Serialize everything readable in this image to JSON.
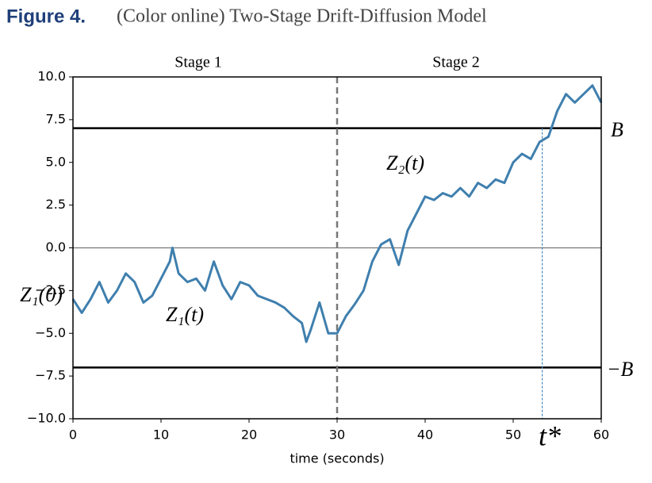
{
  "figure_label": "Figure 4.",
  "caption": "(Color online) Two-Stage Drift-Diffusion Model",
  "chart_data": {
    "type": "line",
    "xlabel": "time (seconds)",
    "x": [
      0,
      1,
      2,
      3,
      4,
      5,
      6,
      7,
      8,
      9,
      10,
      11,
      11.3,
      12,
      13,
      14,
      15,
      16,
      17,
      18,
      19,
      20,
      21,
      22,
      23,
      24,
      25,
      26,
      26.5,
      27,
      28,
      29,
      30,
      31,
      32,
      33,
      34,
      35,
      36,
      37,
      38,
      39,
      40,
      41,
      42,
      43,
      44,
      45,
      46,
      47,
      48,
      49,
      50,
      51,
      52,
      53,
      54,
      55,
      56,
      57,
      58,
      59,
      60
    ],
    "series": [
      {
        "name": "Z",
        "color": "#3f7fae",
        "values": [
          -3.0,
          -3.8,
          -3.0,
          -2.0,
          -3.2,
          -2.5,
          -1.5,
          -2.0,
          -3.2,
          -2.8,
          -1.8,
          -0.8,
          0,
          -1.5,
          -2.0,
          -1.8,
          -2.5,
          -0.8,
          -2.2,
          -3.0,
          -2.0,
          -2.2,
          -2.8,
          -3.0,
          -3.2,
          -3.5,
          -4.0,
          -4.4,
          -5.5,
          -4.8,
          -3.2,
          -5.0,
          -5.0,
          -4.0,
          -3.3,
          -2.5,
          -0.8,
          0.2,
          0.5,
          -1.0,
          1.0,
          2.0,
          3.0,
          2.8,
          3.2,
          3.0,
          3.5,
          3.0,
          3.8,
          3.5,
          4.0,
          3.8,
          5.0,
          5.5,
          5.2,
          6.2,
          6.5,
          8.0,
          9.0,
          8.5,
          9.0,
          9.5,
          8.5
        ]
      }
    ],
    "xlim": [
      0,
      60
    ],
    "xticks": [
      0,
      10,
      20,
      30,
      40,
      50,
      60
    ],
    "ylim": [
      -10,
      10
    ],
    "yticks": [
      {
        "value": -10,
        "label": "−10.0"
      },
      {
        "value": -7.5,
        "label": "−7.5"
      },
      {
        "value": -5,
        "label": "−5.0"
      },
      {
        "value": -2.5,
        "label": "−2.5"
      },
      {
        "value": 0,
        "label": "0.0"
      },
      2.5,
      {
        "value": 5,
        "label": "5.0"
      },
      7.5,
      {
        "value": 10,
        "label": "10.0"
      }
    ],
    "upper_boundary": 7,
    "lower_boundary": -7,
    "stage_split": 30,
    "t_star": 53.3,
    "annotations": [
      "Stage 1",
      "Stage 2",
      "Z₁(0)",
      "Z₁(t)",
      "Z₂(t)",
      "B",
      "−B",
      "t*"
    ]
  }
}
